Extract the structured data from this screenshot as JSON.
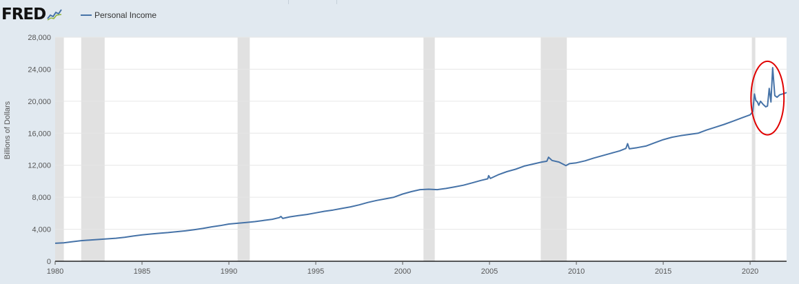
{
  "header": {
    "logo_text": "FRED",
    "logo_icon": "line-graph-icon",
    "legend_label": "Personal Income"
  },
  "colors": {
    "background": "#e1e9f0",
    "plot_background": "#ffffff",
    "series": "#4572a7",
    "recession": "#e1e1e1",
    "annotation": "#e00000"
  },
  "chart_data": {
    "type": "line",
    "title": "",
    "xlabel": "",
    "ylabel": "Billions of Dollars",
    "xlim": [
      1980.0,
      2022.1
    ],
    "ylim": [
      0,
      28000
    ],
    "y_ticks": [
      0,
      4000,
      8000,
      12000,
      16000,
      20000,
      24000,
      28000
    ],
    "y_tick_labels": [
      "0",
      "4,000",
      "8,000",
      "12,000",
      "16,000",
      "20,000",
      "24,000",
      "28,000"
    ],
    "x_ticks": [
      1980,
      1985,
      1990,
      1995,
      2000,
      2005,
      2010,
      2015,
      2020
    ],
    "x_tick_labels": [
      "1980",
      "1985",
      "1990",
      "1995",
      "2000",
      "2005",
      "2010",
      "2015",
      "2020"
    ],
    "grid": "horizontal",
    "legend_position": "top-left",
    "recessions": [
      [
        1980.0,
        1980.5
      ],
      [
        1981.5,
        1982.85
      ],
      [
        1990.5,
        1991.2
      ],
      [
        2001.2,
        2001.85
      ],
      [
        2007.95,
        2009.45
      ],
      [
        2020.1,
        2020.3
      ]
    ],
    "series": [
      {
        "name": "Personal Income",
        "x": [
          1980.0,
          1980.5,
          1981.0,
          1981.5,
          1982.0,
          1982.5,
          1983.0,
          1983.5,
          1984.0,
          1984.5,
          1985.0,
          1985.5,
          1986.0,
          1986.5,
          1987.0,
          1987.5,
          1988.0,
          1988.5,
          1989.0,
          1989.5,
          1990.0,
          1990.5,
          1991.0,
          1991.5,
          1992.0,
          1992.5,
          1992.9,
          1993.0,
          1993.1,
          1993.5,
          1994.0,
          1994.5,
          1995.0,
          1995.5,
          1996.0,
          1996.5,
          1997.0,
          1997.5,
          1998.0,
          1998.5,
          1999.0,
          1999.5,
          2000.0,
          2000.5,
          2001.0,
          2001.5,
          2002.0,
          2002.5,
          2003.0,
          2003.5,
          2004.0,
          2004.5,
          2004.9,
          2004.95,
          2005.05,
          2005.5,
          2006.0,
          2006.5,
          2007.0,
          2007.5,
          2008.0,
          2008.3,
          2008.4,
          2008.6,
          2009.0,
          2009.4,
          2009.6,
          2010.0,
          2010.5,
          2011.0,
          2011.5,
          2012.0,
          2012.5,
          2012.85,
          2012.95,
          2013.05,
          2013.5,
          2014.0,
          2014.5,
          2015.0,
          2015.5,
          2016.0,
          2016.5,
          2017.0,
          2017.5,
          2018.0,
          2018.5,
          2019.0,
          2019.5,
          2020.0,
          2020.15,
          2020.25,
          2020.33,
          2020.42,
          2020.5,
          2020.6,
          2020.75,
          2020.9,
          2021.0,
          2021.1,
          2021.2,
          2021.3,
          2021.42,
          2021.55,
          2021.7,
          2021.85,
          2022.0,
          2022.1
        ],
        "values": [
          2250,
          2300,
          2450,
          2580,
          2650,
          2720,
          2800,
          2880,
          3000,
          3150,
          3300,
          3400,
          3500,
          3580,
          3700,
          3800,
          3950,
          4100,
          4300,
          4450,
          4650,
          4750,
          4850,
          4950,
          5100,
          5250,
          5450,
          5600,
          5350,
          5550,
          5700,
          5850,
          6050,
          6250,
          6400,
          6600,
          6800,
          7050,
          7350,
          7600,
          7800,
          8000,
          8400,
          8700,
          8950,
          9000,
          8950,
          9100,
          9300,
          9500,
          9800,
          10100,
          10300,
          10700,
          10350,
          10800,
          11200,
          11500,
          11900,
          12150,
          12400,
          12500,
          13000,
          12600,
          12400,
          11950,
          12200,
          12300,
          12550,
          12900,
          13200,
          13500,
          13800,
          14100,
          14700,
          14050,
          14200,
          14400,
          14800,
          15200,
          15500,
          15700,
          15850,
          16000,
          16400,
          16750,
          17100,
          17500,
          17900,
          18300,
          18700,
          20900,
          20100,
          19900,
          19500,
          20000,
          19600,
          19300,
          19400,
          21600,
          19900,
          24200,
          20700,
          20500,
          20800,
          20900,
          21000,
          21100
        ]
      }
    ],
    "annotation": {
      "shape": "ellipse",
      "color": "#e00000",
      "x_center": 2021.0,
      "y_center": 20400,
      "x_radius": 0.95,
      "y_radius": 4600
    }
  }
}
